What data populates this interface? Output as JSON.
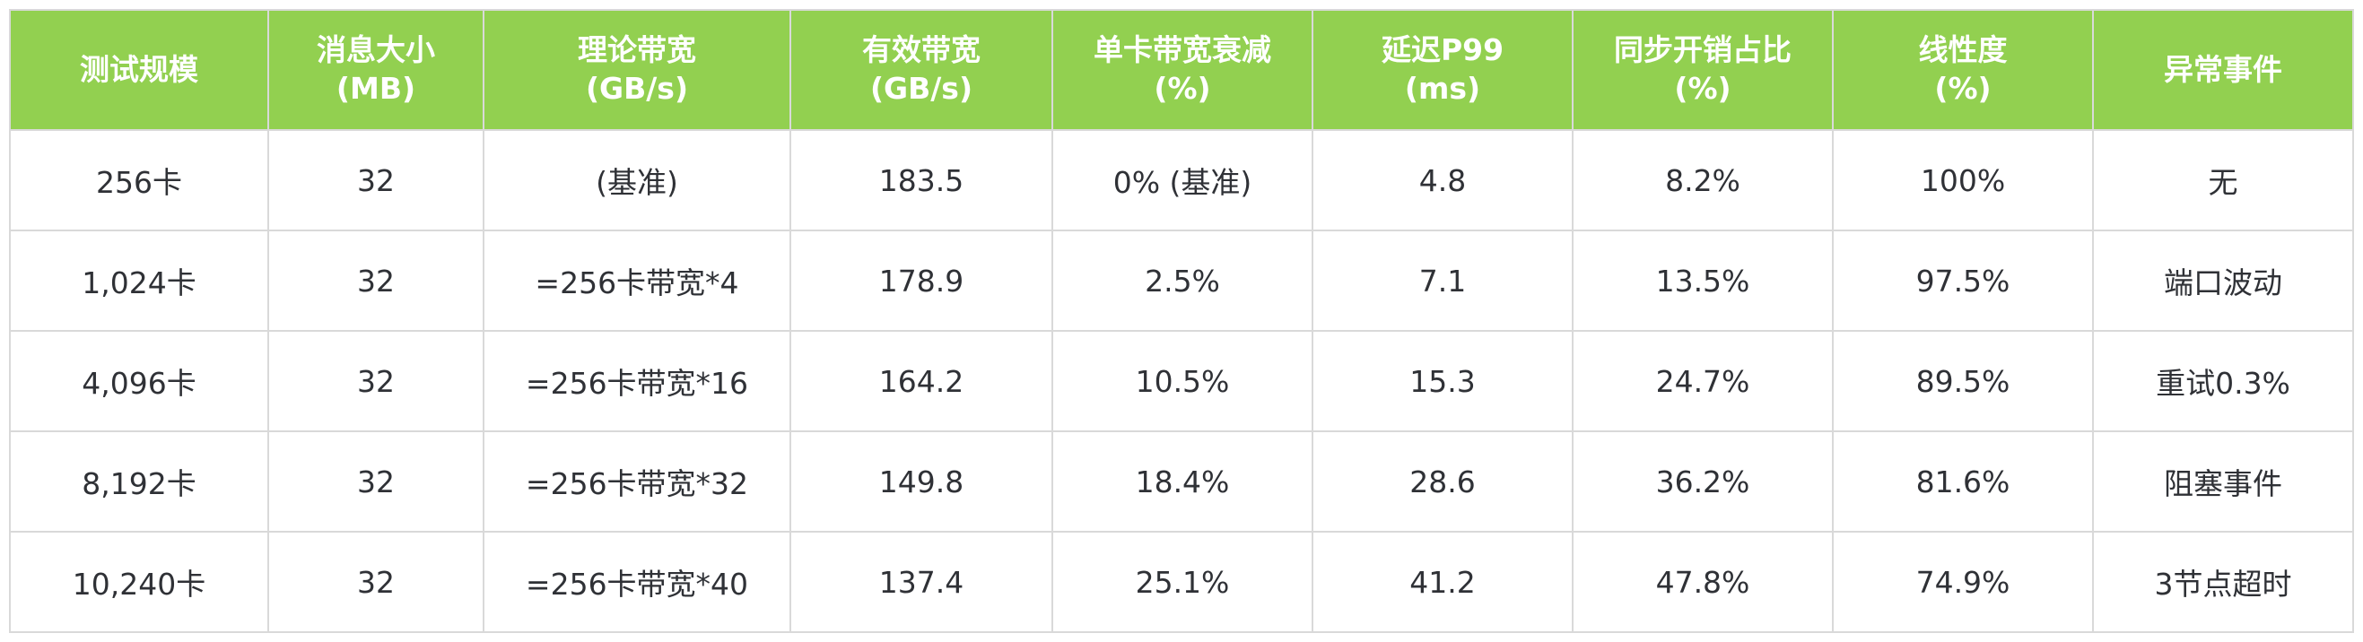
{
  "columns": [
    {
      "line1": "测试规模",
      "line2": ""
    },
    {
      "line1": "消息大小",
      "line2": "(MB)"
    },
    {
      "line1": "理论带宽",
      "line2": "(GB/s)"
    },
    {
      "line1": "有效带宽",
      "line2": "(GB/s)"
    },
    {
      "line1": "单卡带宽衰减",
      "line2": "(%)"
    },
    {
      "line1": "延迟P99",
      "line2": "(ms)"
    },
    {
      "line1": "同步开销占比",
      "line2": "(%)"
    },
    {
      "line1": "线性度",
      "line2": "(%)"
    },
    {
      "line1": "异常事件",
      "line2": ""
    }
  ],
  "rows": [
    [
      "256卡",
      "32",
      "(基准)",
      "183.5",
      "0% (基准)",
      "4.8",
      "8.2%",
      "100%",
      "无"
    ],
    [
      "1,024卡",
      "32",
      "=256卡带宽*4",
      "178.9",
      "2.5%",
      "7.1",
      "13.5%",
      "97.5%",
      "端口波动"
    ],
    [
      "4,096卡",
      "32",
      "=256卡带宽*16",
      "164.2",
      "10.5%",
      "15.3",
      "24.7%",
      "89.5%",
      "重试0.3%"
    ],
    [
      "8,192卡",
      "32",
      "=256卡带宽*32",
      "149.8",
      "18.4%",
      "28.6",
      "36.2%",
      "81.6%",
      "阻塞事件"
    ],
    [
      "10,240卡",
      "32",
      "=256卡带宽*40",
      "137.4",
      "25.1%",
      "41.2",
      "47.8%",
      "74.9%",
      "3节点超时"
    ]
  ],
  "colors": {
    "header_bg": "#92d050",
    "header_text": "#ffffff",
    "border": "#d9d9d9",
    "body_text": "#2f3136"
  }
}
